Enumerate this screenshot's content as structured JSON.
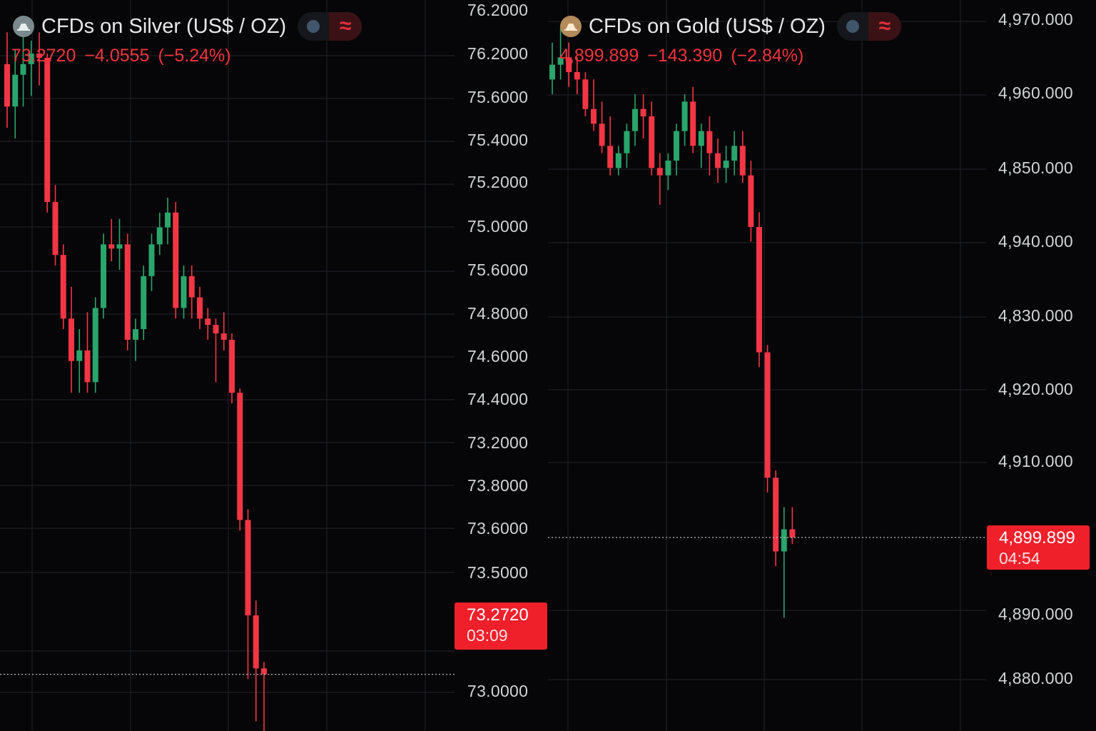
{
  "colors": {
    "background": "#060608",
    "up": "#2aa56c",
    "down": "#f23645",
    "grid": "#1d1f25",
    "axis_text": "#d2d4d8"
  },
  "silver": {
    "title": "CFDs on Silver (US$ / OZ)",
    "icon": "silver-ingot-icon",
    "quote": {
      "price": "73.2720",
      "change": "−4.0555",
      "change_pct": "(−5.24%)"
    },
    "price_tag": {
      "price": "73.2720",
      "countdown": "03:09"
    },
    "axis_labels": [
      "76.2000",
      "76.2000",
      "75.6000",
      "75.4000",
      "75.2000",
      "75.0000",
      "75.6000",
      "74.8000",
      "74.6000",
      "74.4000",
      "73.2000",
      "73.8000",
      "73.6000",
      "73.5000",
      "73.0000"
    ],
    "chart_data": {
      "type": "candlestick",
      "symbol": "CFDs on Silver (US$ / OZ)",
      "last": 73.272,
      "scale": "linear",
      "approx_ohlc": [
        [
          76.15,
          76.3,
          75.85,
          75.95
        ],
        [
          75.95,
          76.22,
          75.8,
          76.1
        ],
        [
          76.1,
          76.28,
          75.95,
          76.15
        ],
        [
          76.15,
          76.26,
          76.0,
          76.2
        ],
        [
          76.2,
          76.3,
          76.05,
          76.18
        ],
        [
          76.18,
          76.2,
          75.45,
          75.5
        ],
        [
          75.5,
          75.58,
          75.2,
          75.25
        ],
        [
          75.25,
          75.3,
          74.9,
          74.95
        ],
        [
          74.95,
          75.1,
          74.6,
          74.75
        ],
        [
          74.75,
          74.9,
          74.6,
          74.8
        ],
        [
          74.8,
          74.98,
          74.6,
          74.65
        ],
        [
          74.65,
          75.05,
          74.6,
          75.0
        ],
        [
          75.0,
          75.35,
          74.95,
          75.3
        ],
        [
          75.3,
          75.42,
          75.22,
          75.28
        ],
        [
          75.28,
          75.42,
          75.18,
          75.3
        ],
        [
          75.3,
          75.35,
          74.8,
          74.85
        ],
        [
          74.85,
          74.95,
          74.75,
          74.9
        ],
        [
          74.9,
          75.2,
          74.85,
          75.15
        ],
        [
          75.15,
          75.35,
          75.08,
          75.3
        ],
        [
          75.3,
          75.45,
          75.25,
          75.38
        ],
        [
          75.38,
          75.52,
          75.3,
          75.45
        ],
        [
          75.45,
          75.5,
          74.95,
          75.0
        ],
        [
          75.0,
          75.2,
          74.95,
          75.15
        ],
        [
          75.15,
          75.2,
          74.95,
          75.05
        ],
        [
          75.05,
          75.1,
          74.9,
          74.95
        ],
        [
          74.95,
          75.0,
          74.85,
          74.92
        ],
        [
          74.92,
          74.95,
          74.65,
          74.88
        ],
        [
          74.88,
          74.98,
          74.8,
          74.85
        ],
        [
          74.85,
          74.88,
          74.55,
          74.6
        ],
        [
          74.6,
          74.62,
          73.95,
          74.0
        ],
        [
          74.0,
          74.05,
          73.25,
          73.55
        ],
        [
          73.55,
          73.62,
          73.05,
          73.3
        ],
        [
          73.3,
          73.33,
          73.0,
          73.272
        ]
      ]
    }
  },
  "gold": {
    "title": "CFDs on Gold (US$ / OZ)",
    "icon": "gold-ingot-icon",
    "quote": {
      "price": "4,899.899",
      "change": "−143.390",
      "change_pct": "(−2.84%)"
    },
    "price_tag": {
      "price": "4,899.899",
      "countdown": "04:54"
    },
    "axis_labels": [
      "4,970.000",
      "4,960.000",
      "4,850.000",
      "4,940.000",
      "4,830.000",
      "4,920.000",
      "4,910.000",
      "4,890.000",
      "4,880.000"
    ],
    "chart_data": {
      "type": "candlestick",
      "symbol": "CFDs on Gold (US$ / OZ)",
      "last": 4899.899,
      "scale": "linear",
      "approx_ohlc": [
        [
          4962,
          4967,
          4960,
          4964
        ],
        [
          4964,
          4969,
          4962,
          4965
        ],
        [
          4965,
          4967,
          4961,
          4963
        ],
        [
          4963,
          4965,
          4960,
          4962
        ],
        [
          4962,
          4963,
          4957,
          4958
        ],
        [
          4958,
          4962,
          4955,
          4956
        ],
        [
          4956,
          4959,
          4952,
          4953
        ],
        [
          4953,
          4957,
          4949,
          4950
        ],
        [
          4950,
          4953,
          4949,
          4952
        ],
        [
          4952,
          4956,
          4950,
          4955
        ],
        [
          4955,
          4960,
          4953,
          4958
        ],
        [
          4958,
          4960,
          4954,
          4957
        ],
        [
          4957,
          4959,
          4949,
          4950
        ],
        [
          4950,
          4952,
          4945,
          4949
        ],
        [
          4949,
          4952,
          4947,
          4951
        ],
        [
          4951,
          4956,
          4949,
          4955
        ],
        [
          4955,
          4960,
          4953,
          4959
        ],
        [
          4959,
          4961,
          4952,
          4953
        ],
        [
          4953,
          4956,
          4950,
          4955
        ],
        [
          4955,
          4957,
          4949,
          4952
        ],
        [
          4952,
          4954,
          4948,
          4950
        ],
        [
          4950,
          4953,
          4948,
          4951
        ],
        [
          4951,
          4955,
          4949,
          4953
        ],
        [
          4953,
          4955,
          4948,
          4949
        ],
        [
          4949,
          4951,
          4940,
          4942
        ],
        [
          4942,
          4944,
          4923,
          4925
        ],
        [
          4925,
          4926,
          4906,
          4908
        ],
        [
          4908,
          4909,
          4896,
          4898
        ],
        [
          4898,
          4904,
          4889,
          4901
        ],
        [
          4901,
          4904,
          4899,
          4899.899
        ]
      ]
    }
  }
}
